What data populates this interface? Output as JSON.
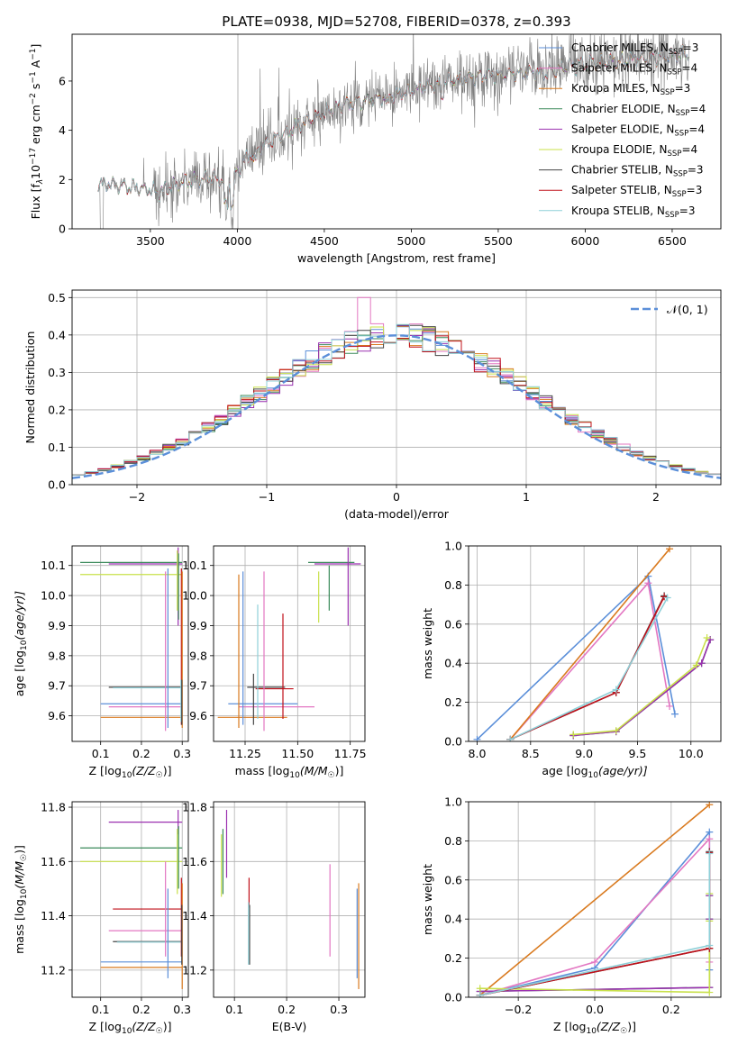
{
  "figure": {
    "title": "PLATE=0938, MJD=52708, FIBERID=0378, z=0.393"
  },
  "colors": {
    "c_miles": "#5b8fd9",
    "s_miles": "#e377c2",
    "k_miles": "#d97a1f",
    "c_elodie": "#3a8a5a",
    "s_elodie": "#9b30b0",
    "k_elodie": "#c8e04a",
    "c_stelib": "#444444",
    "s_stelib": "#c0101a",
    "k_stelib": "#8fd0d8",
    "data_spectrum": "#808080",
    "gauss": "#5b8fd9"
  },
  "chart_data": [
    {
      "id": "spectrum",
      "type": "line",
      "xlabel": "wavelength [Angstrom, rest frame]",
      "ylabel": "Flux [f_λ 10^-17 erg cm^-2 s^-1 A^-1]",
      "ylabel_parts": {
        "a": "Flux [f",
        "b": "λ",
        "c": "10",
        "d": "−17",
        "e": " erg cm",
        "f": "−2",
        "g": " s",
        "h": "−1",
        "i": " A",
        "j": "−1",
        "k": "]"
      },
      "xlim": [
        3050,
        6780
      ],
      "ylim": [
        0,
        7.9
      ],
      "xticks": [
        "3500",
        "4000",
        "4500",
        "5000",
        "5500",
        "6000",
        "6500"
      ],
      "yticks": [
        "0",
        "2",
        "4",
        "6"
      ],
      "legend_position": "top-right",
      "legend": [
        {
          "key": "c_miles",
          "label": "Chabrier MILES, N",
          "sub": "SSP",
          "suffix": "=3"
        },
        {
          "key": "s_miles",
          "label": "Salpeter MILES, N",
          "sub": "SSP",
          "suffix": "=4"
        },
        {
          "key": "k_miles",
          "label": "Kroupa MILES, N",
          "sub": "SSP",
          "suffix": "=3"
        },
        {
          "key": "c_elodie",
          "label": "Chabrier ELODIE, N",
          "sub": "SSP",
          "suffix": "=4"
        },
        {
          "key": "s_elodie",
          "label": "Salpeter ELODIE, N",
          "sub": "SSP",
          "suffix": "=4"
        },
        {
          "key": "k_elodie",
          "label": "Kroupa ELODIE, N",
          "sub": "SSP",
          "suffix": "=4"
        },
        {
          "key": "c_stelib",
          "label": "Chabrier STELIB, N",
          "sub": "SSP",
          "suffix": "=3"
        },
        {
          "key": "s_stelib",
          "label": "Salpeter STELIB, N",
          "sub": "SSP",
          "suffix": "=3"
        },
        {
          "key": "k_stelib",
          "label": "Kroupa STELIB, N",
          "sub": "SSP",
          "suffix": "=3"
        }
      ],
      "continuum": [
        [
          3200,
          1.85
        ],
        [
          3400,
          1.7
        ],
        [
          3550,
          1.5
        ],
        [
          3700,
          1.9
        ],
        [
          3850,
          2.1
        ],
        [
          3950,
          1.8
        ],
        [
          4050,
          2.9
        ],
        [
          4200,
          3.6
        ],
        [
          4400,
          4.4
        ],
        [
          4600,
          5.0
        ],
        [
          4800,
          5.3
        ],
        [
          5000,
          5.6
        ],
        [
          5200,
          6.0
        ],
        [
          5400,
          6.2
        ],
        [
          5600,
          6.3
        ],
        [
          5800,
          6.4
        ],
        [
          6000,
          6.7
        ],
        [
          6300,
          6.9
        ],
        [
          6600,
          7.1
        ]
      ],
      "data_range": [
        3200,
        6600
      ],
      "data_range_1": [
        3550,
        6600
      ],
      "data_range_2": [
        3050,
        3450
      ],
      "data_range_3": [
        3990,
        4045
      ],
      "model_range": [
        3200,
        6600
      ]
    },
    {
      "id": "residuals",
      "type": "histogram",
      "xlabel": "(data-model)/error",
      "ylabel": "Normed distribution",
      "xlim": [
        -2.5,
        2.5
      ],
      "ylim": [
        0,
        0.52
      ],
      "xticks": [
        "−2",
        "−1",
        "0",
        "1",
        "2"
      ],
      "yticks": [
        "0.0",
        "0.1",
        "0.2",
        "0.3",
        "0.4",
        "0.5"
      ],
      "bin_width": 0.1,
      "legend_position": "top-right",
      "legend": [
        {
          "label": "𝒩(0, 1)"
        }
      ]
    },
    {
      "id": "age_vs_Z",
      "type": "errorbar",
      "xlabel": "Z [log10(Z/Z☉)]",
      "xlabel_parts": {
        "a": "Z [log",
        "b": "10",
        "c": "(Z/Z",
        "d": "☉",
        "e": ")]"
      },
      "ylabel": "age [log10(age/yr)]",
      "ylabel_parts": {
        "a": "age  [log",
        "b": "10",
        "c": "(age/yr)]"
      },
      "xlim": [
        0.03,
        0.315
      ],
      "ylim": [
        9.515,
        10.165
      ],
      "xticks": [
        "0.1",
        "0.2",
        "0.3"
      ],
      "yticks": [
        "9.6",
        "9.7",
        "9.8",
        "9.9",
        "10.0",
        "10.1"
      ],
      "hbars": [
        {
          "key": "c_elodie",
          "y": 10.11,
          "x0": 0.05,
          "x1": 0.3
        },
        {
          "key": "s_elodie",
          "y": 10.105,
          "x0": 0.12,
          "x1": 0.3
        },
        {
          "key": "k_elodie",
          "y": 10.07,
          "x0": 0.05,
          "x1": 0.3
        },
        {
          "key": "c_stelib",
          "y": 9.695,
          "x0": 0.12,
          "x1": 0.3
        },
        {
          "key": "k_stelib",
          "y": 9.693,
          "x0": 0.13,
          "x1": 0.3
        },
        {
          "key": "c_miles",
          "y": 9.64,
          "x0": 0.1,
          "x1": 0.3
        },
        {
          "key": "s_miles",
          "y": 9.63,
          "x0": 0.12,
          "x1": 0.3
        },
        {
          "key": "k_miles",
          "y": 9.595,
          "x0": 0.1,
          "x1": 0.3
        }
      ],
      "vbars": [
        {
          "key": "s_elodie",
          "x": 0.29,
          "y0": 9.9,
          "y1": 10.16
        },
        {
          "key": "k_elodie",
          "x": 0.288,
          "y0": 9.95,
          "y1": 10.15
        },
        {
          "key": "c_elodie",
          "x": 0.291,
          "y0": 9.92,
          "y1": 10.14
        },
        {
          "key": "s_miles",
          "x": 0.259,
          "y0": 9.55,
          "y1": 10.08
        },
        {
          "key": "c_miles",
          "x": 0.265,
          "y0": 9.56,
          "y1": 10.09
        },
        {
          "key": "s_stelib",
          "x": 0.298,
          "y0": 9.57,
          "y1": 10.09
        },
        {
          "key": "k_miles",
          "x": 0.3,
          "y0": 9.56,
          "y1": 10.08
        },
        {
          "key": "k_stelib",
          "x": 0.297,
          "y0": 9.58,
          "y1": 9.72
        },
        {
          "key": "c_stelib",
          "x": 0.299,
          "y0": 9.57,
          "y1": 9.72
        }
      ]
    },
    {
      "id": "age_vs_mass",
      "type": "errorbar",
      "xlabel": "mass [log10(M/M☉)]",
      "xlabel_parts": {
        "a": "mass [log",
        "b": "10",
        "c": "(M/M",
        "d": "☉",
        "e": ")]"
      },
      "ylabel": "",
      "xlim": [
        11.1,
        11.82
      ],
      "ylim": [
        9.515,
        10.165
      ],
      "xticks": [
        "11.25",
        "11.50",
        "11.75"
      ],
      "yticks": [
        "9.6",
        "9.7",
        "9.8",
        "9.9",
        "10.0",
        "10.1"
      ],
      "hbars": [
        {
          "key": "c_elodie",
          "y": 10.11,
          "x0": 11.55,
          "x1": 11.77
        },
        {
          "key": "s_elodie",
          "y": 10.105,
          "x0": 11.58,
          "x1": 11.8
        },
        {
          "key": "c_stelib",
          "y": 9.695,
          "x0": 11.26,
          "x1": 11.44
        },
        {
          "key": "s_stelib",
          "y": 9.69,
          "x0": 11.3,
          "x1": 11.48
        },
        {
          "key": "c_miles",
          "y": 9.64,
          "x0": 11.17,
          "x1": 11.5
        },
        {
          "key": "s_miles",
          "y": 9.63,
          "x0": 11.22,
          "x1": 11.58
        },
        {
          "key": "k_miles",
          "y": 9.595,
          "x0": 11.12,
          "x1": 11.45
        }
      ],
      "vbars": [
        {
          "key": "s_elodie",
          "x": 11.74,
          "y0": 9.9,
          "y1": 10.16
        },
        {
          "key": "c_elodie",
          "x": 11.65,
          "y0": 9.95,
          "y1": 10.1
        },
        {
          "key": "k_elodie",
          "x": 11.6,
          "y0": 9.91,
          "y1": 10.08
        },
        {
          "key": "s_miles",
          "x": 11.34,
          "y0": 9.55,
          "y1": 10.08
        },
        {
          "key": "c_miles",
          "x": 11.24,
          "y0": 9.57,
          "y1": 10.08
        },
        {
          "key": "k_miles",
          "x": 11.22,
          "y0": 9.56,
          "y1": 10.07
        },
        {
          "key": "s_stelib",
          "x": 11.43,
          "y0": 9.59,
          "y1": 9.94
        },
        {
          "key": "k_stelib",
          "x": 11.31,
          "y0": 9.59,
          "y1": 9.97
        },
        {
          "key": "c_stelib",
          "x": 11.29,
          "y0": 9.57,
          "y1": 9.74
        }
      ]
    },
    {
      "id": "massweight_vs_age",
      "type": "line",
      "xlabel": "age [log10(age/yr)]",
      "xlabel_parts": {
        "a": "age  [log",
        "b": "10",
        "c": "(age/yr)]"
      },
      "ylabel": "mass weight",
      "xlim": [
        7.92,
        10.28
      ],
      "ylim": [
        0,
        1
      ],
      "xticks": [
        "8.0",
        "8.5",
        "9.0",
        "9.5",
        "10.0"
      ],
      "yticks": [
        "0.0",
        "0.2",
        "0.4",
        "0.6",
        "0.8",
        "1.0"
      ],
      "series": [
        {
          "key": "c_miles",
          "x": [
            8.0,
            9.6,
            9.85
          ],
          "y": [
            0.01,
            0.845,
            0.14
          ]
        },
        {
          "key": "s_miles",
          "x": [
            8.31,
            9.6,
            9.8
          ],
          "y": [
            0.01,
            0.81,
            0.18
          ]
        },
        {
          "key": "k_miles",
          "x": [
            8.31,
            9.8
          ],
          "y": [
            0.01,
            0.985
          ]
        },
        {
          "key": "c_elodie",
          "x": [
            8.9,
            9.3,
            10.1,
            10.18
          ],
          "y": [
            0.03,
            0.05,
            0.4,
            0.52
          ]
        },
        {
          "key": "s_elodie",
          "x": [
            8.9,
            9.3,
            10.1,
            10.18
          ],
          "y": [
            0.03,
            0.05,
            0.4,
            0.52
          ]
        },
        {
          "key": "k_elodie",
          "x": [
            8.9,
            9.3,
            10.05,
            10.15
          ],
          "y": [
            0.035,
            0.055,
            0.39,
            0.53
          ]
        },
        {
          "key": "c_stelib",
          "x": [
            8.31,
            9.3,
            9.75
          ],
          "y": [
            0.01,
            0.25,
            0.745
          ]
        },
        {
          "key": "s_stelib",
          "x": [
            8.31,
            9.3,
            9.75
          ],
          "y": [
            0.01,
            0.25,
            0.74
          ]
        },
        {
          "key": "k_stelib",
          "x": [
            8.31,
            9.3,
            9.78
          ],
          "y": [
            0.01,
            0.265,
            0.735
          ]
        }
      ]
    },
    {
      "id": "mass_vs_Z",
      "type": "errorbar",
      "xlabel": "Z [log10(Z/Z☉)]",
      "xlabel_parts": {
        "a": "Z [log",
        "b": "10",
        "c": "(Z/Z",
        "d": "☉",
        "e": ")]"
      },
      "ylabel": "mass [log10(M/M☉)]",
      "ylabel_parts": {
        "a": "mass [log",
        "b": "10",
        "c": "(M/M",
        "d": "☉",
        "e": ")]"
      },
      "xlim": [
        0.03,
        0.315
      ],
      "ylim": [
        11.1,
        11.82
      ],
      "xticks": [
        "0.1",
        "0.2",
        "0.3"
      ],
      "yticks": [
        "11.2",
        "11.4",
        "11.6",
        "11.8"
      ],
      "hbars": [
        {
          "key": "s_elodie",
          "y": 11.745,
          "x0": 0.12,
          "x1": 0.3
        },
        {
          "key": "c_elodie",
          "y": 11.65,
          "x0": 0.05,
          "x1": 0.3
        },
        {
          "key": "k_elodie",
          "y": 11.6,
          "x0": 0.05,
          "x1": 0.3
        },
        {
          "key": "s_stelib",
          "y": 11.425,
          "x0": 0.13,
          "x1": 0.3
        },
        {
          "key": "s_miles",
          "y": 11.345,
          "x0": 0.12,
          "x1": 0.3
        },
        {
          "key": "c_stelib",
          "y": 11.305,
          "x0": 0.13,
          "x1": 0.3
        },
        {
          "key": "k_stelib",
          "y": 11.303,
          "x0": 0.14,
          "x1": 0.3
        },
        {
          "key": "c_miles",
          "y": 11.23,
          "x0": 0.1,
          "x1": 0.3
        },
        {
          "key": "k_miles",
          "y": 11.21,
          "x0": 0.1,
          "x1": 0.3
        }
      ],
      "vbars": [
        {
          "key": "s_elodie",
          "x": 0.29,
          "y0": 11.7,
          "y1": 11.79
        },
        {
          "key": "c_elodie",
          "x": 0.291,
          "y0": 11.5,
          "y1": 11.73
        },
        {
          "key": "k_elodie",
          "x": 0.288,
          "y0": 11.48,
          "y1": 11.72
        },
        {
          "key": "s_miles",
          "x": 0.259,
          "y0": 11.25,
          "y1": 11.6
        },
        {
          "key": "c_miles",
          "x": 0.265,
          "y0": 11.17,
          "y1": 11.5
        },
        {
          "key": "s_stelib",
          "x": 0.298,
          "y0": 11.25,
          "y1": 11.54
        },
        {
          "key": "k_miles",
          "x": 0.3,
          "y0": 11.13,
          "y1": 11.52
        },
        {
          "key": "c_stelib",
          "x": 0.299,
          "y0": 11.22,
          "y1": 11.44
        }
      ]
    },
    {
      "id": "mass_vs_ebv",
      "type": "errorbar",
      "xlabel": "E(B-V)",
      "ylabel": "",
      "xlim": [
        0.06,
        0.35
      ],
      "ylim": [
        11.1,
        11.82
      ],
      "xticks": [
        "0.1",
        "0.2",
        "0.3"
      ],
      "yticks": [
        "11.2",
        "11.4",
        "11.6",
        "11.8"
      ],
      "hbars": [],
      "vbars": [
        {
          "key": "s_elodie",
          "x": 0.085,
          "y0": 11.54,
          "y1": 11.79
        },
        {
          "key": "c_elodie",
          "x": 0.078,
          "y0": 11.48,
          "y1": 11.72
        },
        {
          "key": "k_elodie",
          "x": 0.075,
          "y0": 11.47,
          "y1": 11.7
        },
        {
          "key": "s_stelib",
          "x": 0.128,
          "y0": 11.43,
          "y1": 11.54
        },
        {
          "key": "c_stelib",
          "x": 0.129,
          "y0": 11.22,
          "y1": 11.44
        },
        {
          "key": "k_stelib",
          "x": 0.127,
          "y0": 11.22,
          "y1": 11.45
        },
        {
          "key": "s_miles",
          "x": 0.283,
          "y0": 11.25,
          "y1": 11.59
        },
        {
          "key": "c_miles",
          "x": 0.335,
          "y0": 11.17,
          "y1": 11.5
        },
        {
          "key": "k_miles",
          "x": 0.338,
          "y0": 11.13,
          "y1": 11.52
        }
      ]
    },
    {
      "id": "massweight_vs_Z",
      "type": "line",
      "xlabel": "Z [log10(Z/Z☉)]",
      "xlabel_parts": {
        "a": "Z [log",
        "b": "10",
        "c": "(Z/Z",
        "d": "☉",
        "e": ")]"
      },
      "ylabel": "mass weight",
      "xlim": [
        -0.33,
        0.33
      ],
      "ylim": [
        0,
        1
      ],
      "xticks": [
        "−0.2",
        "0.0",
        "0.2"
      ],
      "yticks": [
        "0.0",
        "0.2",
        "0.4",
        "0.6",
        "0.8",
        "1.0"
      ],
      "series": [
        {
          "key": "c_miles",
          "x": [
            -0.3,
            0.0,
            0.3,
            0.3
          ],
          "y": [
            0.01,
            0.15,
            0.845,
            0.14
          ]
        },
        {
          "key": "s_miles",
          "x": [
            -0.3,
            0.0,
            0.3,
            0.3
          ],
          "y": [
            0.01,
            0.18,
            0.81,
            0.18
          ]
        },
        {
          "key": "k_miles",
          "x": [
            -0.3,
            0.3
          ],
          "y": [
            0.01,
            0.985
          ]
        },
        {
          "key": "c_elodie",
          "x": [
            -0.3,
            0.3,
            0.3,
            0.3
          ],
          "y": [
            0.03,
            0.05,
            0.4,
            0.52
          ]
        },
        {
          "key": "s_elodie",
          "x": [
            -0.3,
            0.3,
            0.3,
            0.3
          ],
          "y": [
            0.03,
            0.05,
            0.4,
            0.52
          ]
        },
        {
          "key": "k_elodie",
          "x": [
            -0.3,
            0.3,
            0.3,
            0.3
          ],
          "y": [
            0.045,
            0.025,
            0.39,
            0.53
          ]
        },
        {
          "key": "c_stelib",
          "x": [
            -0.3,
            0.3,
            0.3
          ],
          "y": [
            0.01,
            0.25,
            0.745
          ]
        },
        {
          "key": "s_stelib",
          "x": [
            -0.3,
            0.3,
            0.3
          ],
          "y": [
            0.01,
            0.25,
            0.74
          ]
        },
        {
          "key": "k_stelib",
          "x": [
            -0.3,
            0.3,
            0.3
          ],
          "y": [
            0.01,
            0.265,
            0.735
          ]
        }
      ]
    }
  ]
}
